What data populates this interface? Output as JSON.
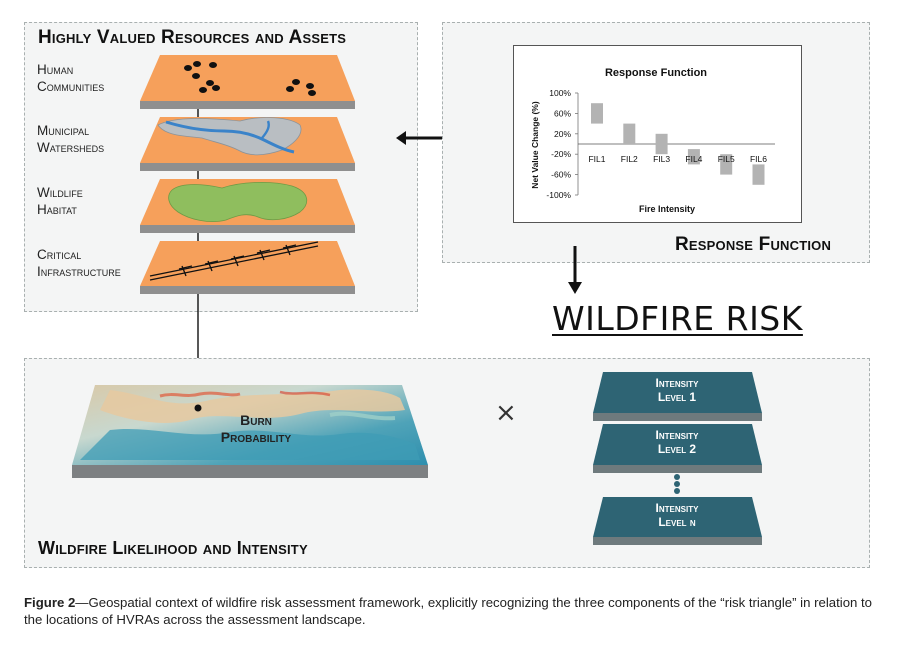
{
  "hvra_panel": {
    "title": "Highly Valued Resources and Assets",
    "layers": [
      {
        "line1": "Human",
        "line2": "Communities"
      },
      {
        "line1": "Municipal",
        "line2": "Watersheds"
      },
      {
        "line1": "Wildlife",
        "line2": "Habitat"
      },
      {
        "line1": "Critical",
        "line2": "Infrastructure"
      }
    ]
  },
  "response_panel": {
    "title": "Response Function",
    "chart_data": {
      "type": "bar",
      "title": "Response Function",
      "xlabel": "Fire Intensity",
      "ylabel": "Net Value Change (%)",
      "ytick_labels": [
        "100%",
        "60%",
        "20%",
        "-20%",
        "-60%",
        "-100%"
      ],
      "ylim": [
        -100,
        100
      ],
      "categories": [
        "FIL1",
        "FIL2",
        "FIL3",
        "FIL4",
        "FIL5",
        "FIL6"
      ],
      "ranges": [
        [
          40,
          80
        ],
        [
          0,
          40
        ],
        [
          -20,
          20
        ],
        [
          -40,
          -10
        ],
        [
          -60,
          -20
        ],
        [
          -80,
          -40
        ]
      ],
      "bar_color": "#b3b3b3"
    }
  },
  "center_label": "WILDFIRE RISK",
  "likelihood_panel": {
    "title": "Wildfire Likelihood and Intensity",
    "burn_label_line1": "Burn",
    "burn_label_line2": "Probability",
    "multiply_symbol": "×",
    "intensity_levels": [
      {
        "line1": "Intensity",
        "line2": "Level 1"
      },
      {
        "line1": "Intensity",
        "line2": "Level 2"
      },
      {
        "line1": "Intensity",
        "line2": "Level n"
      }
    ]
  },
  "caption": {
    "label": "Figure 2",
    "text": "—Geospatial context of wildfire risk assessment framework, explicitly recognizing the three components of the “risk triangle” in relation to the locations of HVRAs across the assessment landscape."
  },
  "colors": {
    "layer_fill": "#f6a05b",
    "layer_edge": "#8f8f8f",
    "water": "#3a83c9",
    "watershed": "#b9bec2",
    "habitat": "#8fbe5e",
    "intensity_box": "#2e6474",
    "panel_bg": "#f4f5f5"
  }
}
